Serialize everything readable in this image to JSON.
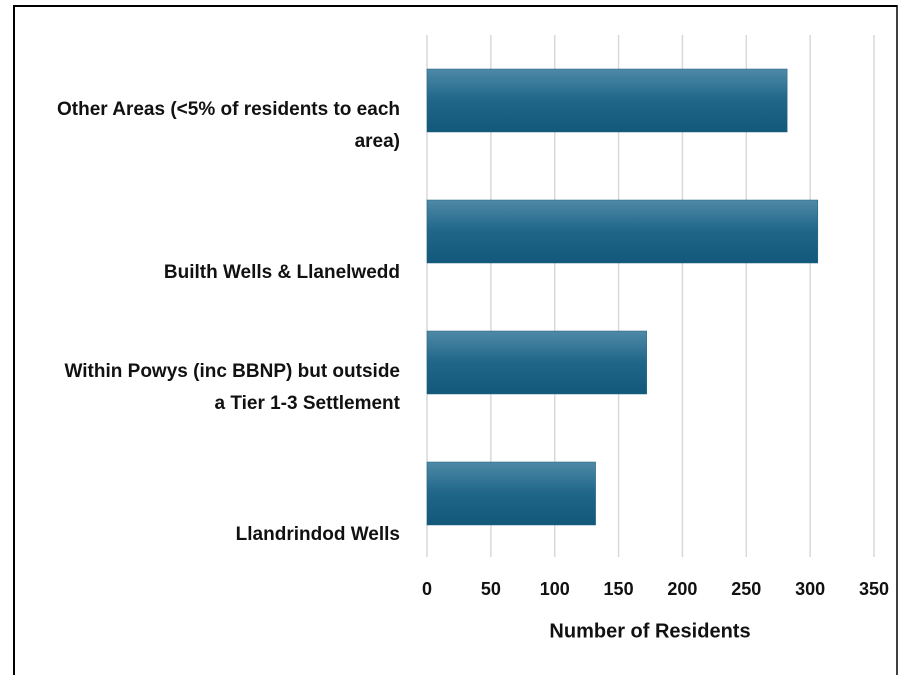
{
  "chart_data": {
    "type": "bar",
    "orientation": "horizontal",
    "categories": [
      "Other Areas (<5% of residents to each area)",
      "Builth Wells & Llanelwedd",
      "Within Powys (inc BBNP) but outside a Tier 1-3 Settlement",
      "Llandrindod Wells"
    ],
    "values": [
      282,
      306,
      172,
      132
    ],
    "color": "#1f5f80",
    "xlabel": "Number of Residents",
    "xlim": [
      0,
      350
    ],
    "xticks": [
      0,
      50,
      100,
      150,
      200,
      250,
      300,
      350
    ],
    "grid": true
  }
}
